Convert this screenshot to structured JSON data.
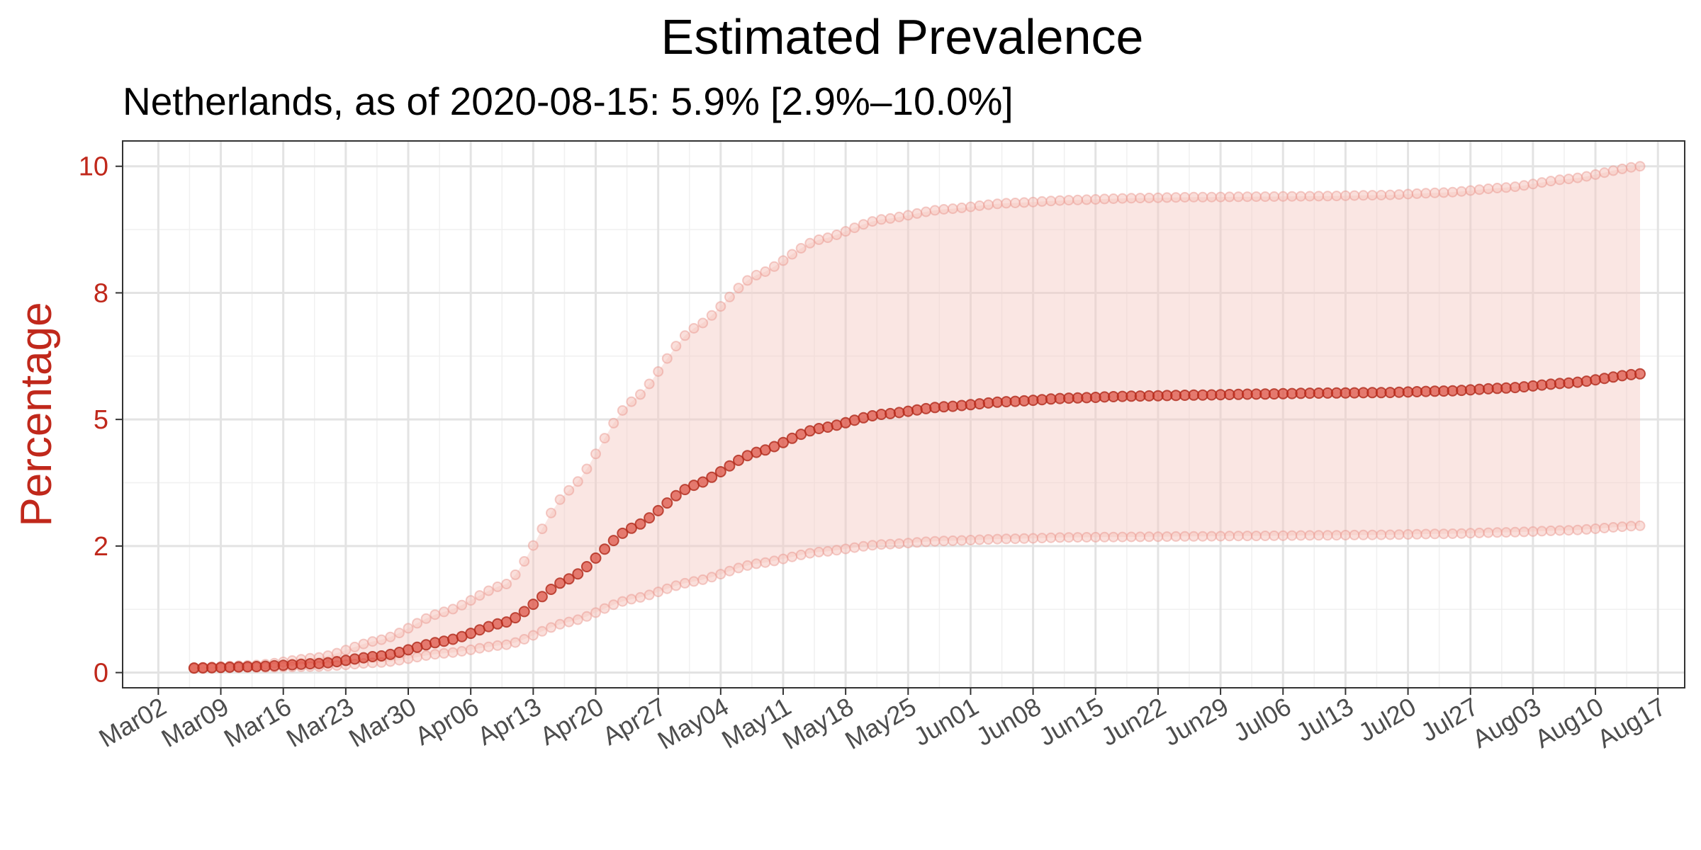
{
  "chart_data": {
    "type": "line",
    "title": "Estimated Prevalence",
    "subtitle": "Netherlands, as of 2020-08-15:  5.9% [2.9%–10.0%]",
    "ylabel": "Percentage",
    "xlabel": "",
    "ylim": [
      -0.3,
      10.5
    ],
    "xlim": [
      "2020-02-27",
      "2020-08-20"
    ],
    "y_ticks": [
      0,
      2.5,
      5,
      7.5,
      10
    ],
    "y_tick_labels": [
      "0",
      "2",
      "5",
      "8",
      "10"
    ],
    "x_ticks": [
      "2020-03-02",
      "2020-03-09",
      "2020-03-16",
      "2020-03-23",
      "2020-03-30",
      "2020-04-06",
      "2020-04-13",
      "2020-04-20",
      "2020-04-27",
      "2020-05-04",
      "2020-05-11",
      "2020-05-18",
      "2020-05-25",
      "2020-06-01",
      "2020-06-08",
      "2020-06-15",
      "2020-06-22",
      "2020-06-29",
      "2020-07-06",
      "2020-07-13",
      "2020-07-20",
      "2020-07-27",
      "2020-08-03",
      "2020-08-10",
      "2020-08-17"
    ],
    "x_tick_labels": [
      "Mar02",
      "Mar09",
      "Mar16",
      "Mar23",
      "Mar30",
      "Apr06",
      "Apr13",
      "Apr20",
      "Apr27",
      "May04",
      "May11",
      "May18",
      "May25",
      "Jun01",
      "Jun08",
      "Jun15",
      "Jun22",
      "Jun29",
      "Jul06",
      "Jul13",
      "Jul20",
      "Jul27",
      "Aug03",
      "Aug10",
      "Aug17"
    ],
    "grid": true,
    "legend": "none",
    "colors": {
      "estimate": "#d7301f",
      "band": "#f4c7c1",
      "axis_text": "#c0281b"
    },
    "x": [
      "2020-03-06",
      "2020-03-13",
      "2020-03-20",
      "2020-03-27",
      "2020-04-03",
      "2020-04-10",
      "2020-04-17",
      "2020-04-24",
      "2020-05-01",
      "2020-05-08",
      "2020-05-15",
      "2020-05-22",
      "2020-05-29",
      "2020-06-05",
      "2020-06-12",
      "2020-06-19",
      "2020-06-26",
      "2020-07-03",
      "2020-07-10",
      "2020-07-17",
      "2020-07-24",
      "2020-07-31",
      "2020-08-07",
      "2020-08-15"
    ],
    "series": [
      {
        "role": "estimate",
        "values": [
          0.09,
          0.12,
          0.18,
          0.33,
          0.62,
          1.0,
          1.85,
          2.85,
          3.7,
          4.35,
          4.82,
          5.1,
          5.25,
          5.35,
          5.42,
          5.46,
          5.48,
          5.5,
          5.52,
          5.53,
          5.56,
          5.62,
          5.72,
          5.9
        ]
      },
      {
        "role": "upper",
        "values": [
          0.1,
          0.15,
          0.3,
          0.65,
          1.2,
          1.75,
          3.6,
          5.35,
          6.8,
          7.85,
          8.55,
          8.95,
          9.15,
          9.27,
          9.33,
          9.37,
          9.39,
          9.4,
          9.41,
          9.43,
          9.48,
          9.58,
          9.75,
          10.0
        ]
      },
      {
        "role": "lower",
        "values": [
          0.08,
          0.1,
          0.12,
          0.2,
          0.38,
          0.55,
          1.0,
          1.45,
          1.8,
          2.15,
          2.38,
          2.53,
          2.6,
          2.64,
          2.67,
          2.68,
          2.69,
          2.7,
          2.71,
          2.72,
          2.74,
          2.77,
          2.81,
          2.9
        ]
      }
    ]
  }
}
